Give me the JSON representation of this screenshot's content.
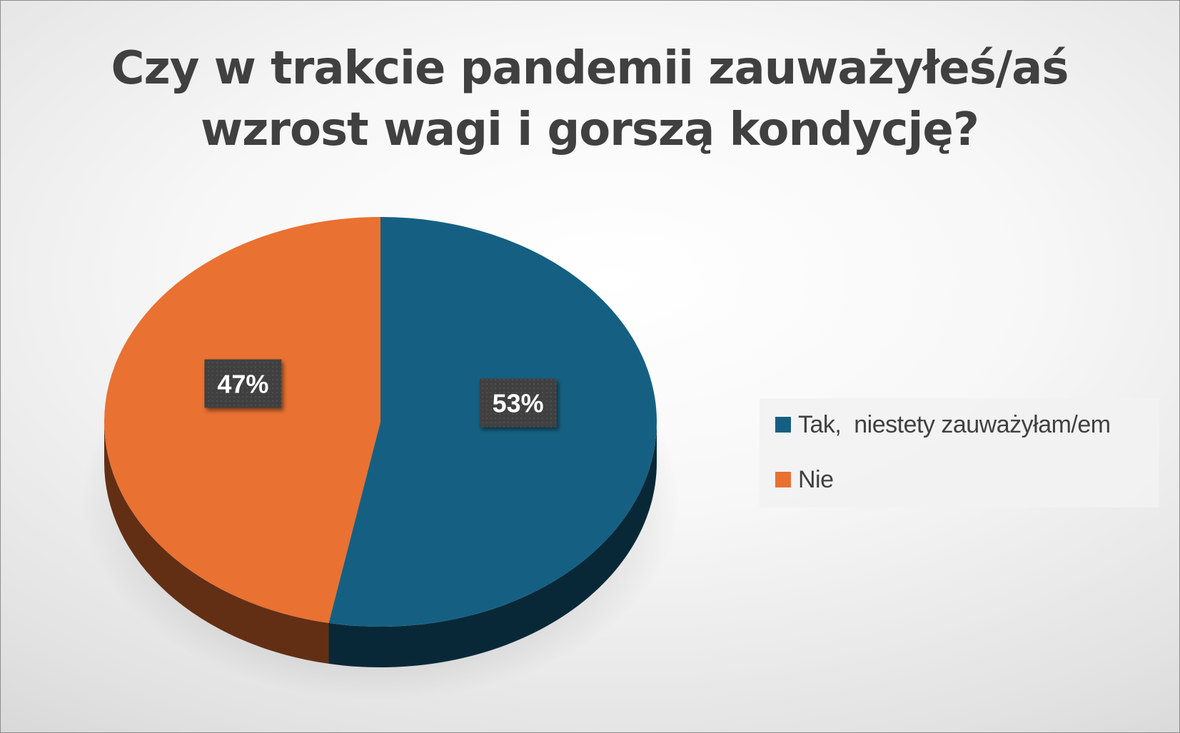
{
  "chart_data": {
    "type": "pie",
    "title_lines": [
      "Czy w trakcie pandemii zauważyłeś/aś",
      "wzrost wagi i gorszą kondycję?"
    ],
    "categories": [
      "Tak,  niestety zauważyłam/em",
      "Nie"
    ],
    "values": [
      53,
      47
    ],
    "data_labels": [
      "53%",
      "47%"
    ],
    "colors": [
      "#156082",
      "#E97132"
    ],
    "legend_position": "right",
    "style": "3d-pie"
  }
}
